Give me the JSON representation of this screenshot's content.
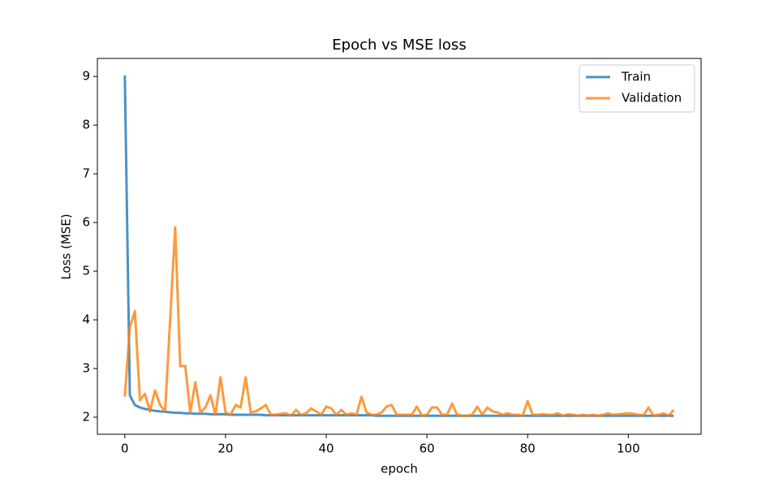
{
  "chart_data": {
    "type": "line",
    "title": "Epoch vs MSE loss",
    "xlabel": "epoch",
    "ylabel": "Loss (MSE)",
    "x": [
      0,
      1,
      2,
      3,
      4,
      5,
      6,
      7,
      8,
      9,
      10,
      11,
      12,
      13,
      14,
      15,
      16,
      17,
      18,
      19,
      20,
      21,
      22,
      23,
      24,
      25,
      26,
      27,
      28,
      29,
      30,
      31,
      32,
      33,
      34,
      35,
      36,
      37,
      38,
      39,
      40,
      41,
      42,
      43,
      44,
      45,
      46,
      47,
      48,
      49,
      50,
      51,
      52,
      53,
      54,
      55,
      56,
      57,
      58,
      59,
      60,
      61,
      62,
      63,
      64,
      65,
      66,
      67,
      68,
      69,
      70,
      71,
      72,
      73,
      74,
      75,
      76,
      77,
      78,
      79,
      80,
      81,
      82,
      83,
      84,
      85,
      86,
      87,
      88,
      89,
      90,
      91,
      92,
      93,
      94,
      95,
      96,
      97,
      98,
      99,
      100,
      101,
      102,
      103,
      104,
      105,
      106,
      107,
      108,
      109
    ],
    "series": [
      {
        "name": "Train",
        "color": "#1f77b4",
        "values": [
          9.02,
          2.45,
          2.25,
          2.2,
          2.17,
          2.15,
          2.13,
          2.12,
          2.11,
          2.1,
          2.09,
          2.09,
          2.08,
          2.08,
          2.07,
          2.07,
          2.07,
          2.06,
          2.06,
          2.06,
          2.06,
          2.05,
          2.05,
          2.05,
          2.05,
          2.05,
          2.05,
          2.05,
          2.04,
          2.04,
          2.04,
          2.04,
          2.04,
          2.04,
          2.04,
          2.04,
          2.04,
          2.04,
          2.04,
          2.04,
          2.04,
          2.04,
          2.04,
          2.04,
          2.04,
          2.04,
          2.04,
          2.04,
          2.04,
          2.04,
          2.03,
          2.03,
          2.03,
          2.03,
          2.03,
          2.03,
          2.03,
          2.03,
          2.03,
          2.03,
          2.03,
          2.03,
          2.03,
          2.03,
          2.03,
          2.03,
          2.03,
          2.03,
          2.03,
          2.03,
          2.03,
          2.03,
          2.03,
          2.03,
          2.03,
          2.03,
          2.03,
          2.03,
          2.03,
          2.03,
          2.03,
          2.03,
          2.03,
          2.03,
          2.03,
          2.03,
          2.03,
          2.03,
          2.03,
          2.03,
          2.03,
          2.03,
          2.03,
          2.03,
          2.03,
          2.03,
          2.03,
          2.03,
          2.03,
          2.03,
          2.03,
          2.03,
          2.03,
          2.03,
          2.03,
          2.03,
          2.03,
          2.03,
          2.03,
          2.03
        ]
      },
      {
        "name": "Validation",
        "color": "#ff7f0e",
        "values": [
          2.42,
          3.85,
          4.18,
          2.35,
          2.48,
          2.12,
          2.55,
          2.25,
          2.12,
          4.0,
          5.9,
          3.05,
          3.05,
          2.1,
          2.72,
          2.1,
          2.2,
          2.45,
          2.05,
          2.82,
          2.1,
          2.05,
          2.25,
          2.2,
          2.82,
          2.1,
          2.12,
          2.18,
          2.25,
          2.05,
          2.05,
          2.07,
          2.08,
          2.03,
          2.15,
          2.05,
          2.08,
          2.18,
          2.12,
          2.05,
          2.22,
          2.18,
          2.05,
          2.15,
          2.05,
          2.08,
          2.05,
          2.42,
          2.1,
          2.05,
          2.05,
          2.1,
          2.22,
          2.25,
          2.05,
          2.05,
          2.05,
          2.05,
          2.22,
          2.03,
          2.05,
          2.2,
          2.2,
          2.05,
          2.05,
          2.28,
          2.05,
          2.03,
          2.03,
          2.05,
          2.22,
          2.05,
          2.2,
          2.12,
          2.1,
          2.05,
          2.08,
          2.05,
          2.05,
          2.03,
          2.33,
          2.05,
          2.05,
          2.06,
          2.05,
          2.05,
          2.08,
          2.03,
          2.06,
          2.05,
          2.03,
          2.05,
          2.03,
          2.05,
          2.03,
          2.05,
          2.08,
          2.05,
          2.06,
          2.07,
          2.08,
          2.07,
          2.05,
          2.04,
          2.2,
          2.03,
          2.05,
          2.08,
          2.03,
          2.15
        ]
      }
    ],
    "xlim": [
      -5.45,
      114.45
    ],
    "xticks": [
      0,
      20,
      40,
      60,
      80,
      100
    ],
    "ylim": [
      1.65,
      9.37
    ],
    "yticks": [
      2,
      3,
      4,
      5,
      6,
      7,
      8,
      9
    ],
    "legend": "upper right"
  }
}
